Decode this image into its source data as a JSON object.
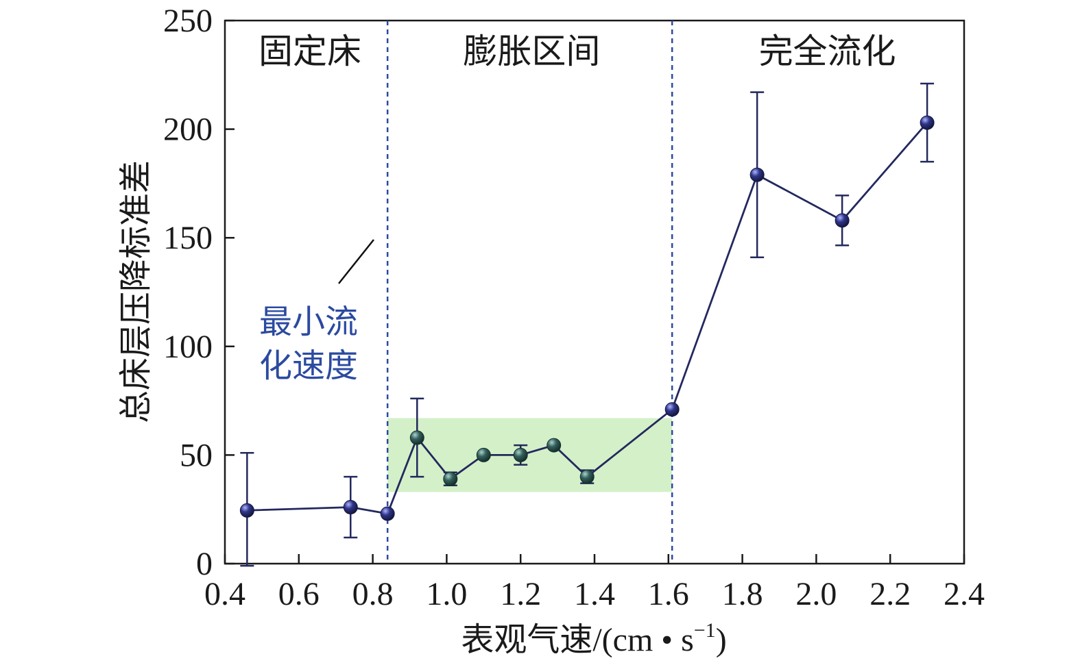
{
  "chart_data": {
    "type": "line",
    "xlabel": "表观气速/(cm • s",
    "xlabel_sup": "−1",
    "xlabel_close": ")",
    "ylabel": "总床层压降标准差",
    "xlim": [
      0.4,
      2.4
    ],
    "ylim": [
      0,
      250
    ],
    "x_ticks": [
      "0.4",
      "0.6",
      "0.8",
      "1.0",
      "1.2",
      "1.4",
      "1.6",
      "1.8",
      "2.0",
      "2.2",
      "2.4"
    ],
    "y_ticks": [
      "0",
      "50",
      "100",
      "150",
      "200",
      "250"
    ],
    "grid": false,
    "series": [
      {
        "points": [
          {
            "x": 0.46,
            "y": 24.5,
            "err_low": 25.5,
            "err_high": 26.5
          },
          {
            "x": 0.74,
            "y": 26,
            "err_low": 14,
            "err_high": 14
          },
          {
            "x": 0.84,
            "y": 23,
            "err_low": 0,
            "err_high": 0
          },
          {
            "x": 0.92,
            "y": 58,
            "err_low": 18,
            "err_high": 18
          },
          {
            "x": 1.01,
            "y": 39,
            "err_low": 3,
            "err_high": 3
          },
          {
            "x": 1.1,
            "y": 50,
            "err_low": 0,
            "err_high": 0
          },
          {
            "x": 1.2,
            "y": 50,
            "err_low": 4.5,
            "err_high": 4.5
          },
          {
            "x": 1.29,
            "y": 54.5,
            "err_low": 0,
            "err_high": 0
          },
          {
            "x": 1.38,
            "y": 40,
            "err_low": 3,
            "err_high": 3
          },
          {
            "x": 1.61,
            "y": 71,
            "err_low": 0,
            "err_high": 0
          },
          {
            "x": 1.84,
            "y": 179,
            "err_low": 38,
            "err_high": 38
          },
          {
            "x": 2.07,
            "y": 158,
            "err_low": 11.5,
            "err_high": 11.5
          },
          {
            "x": 2.3,
            "y": 203,
            "err_low": 18,
            "err_high": 18
          }
        ]
      }
    ],
    "shaded_region": {
      "x": [
        0.84,
        1.61
      ],
      "y": [
        33,
        67
      ],
      "color": "#d4f0c8"
    },
    "vlines": [
      {
        "x": 0.84,
        "style": "dashed"
      },
      {
        "x": 1.61,
        "style": "dashed"
      }
    ],
    "region_labels": [
      {
        "text": "固定床",
        "x": 0.63
      },
      {
        "text": "膨胀区间",
        "x": 1.23
      },
      {
        "text": "完全流化",
        "x": 2.03
      }
    ],
    "annotation": {
      "lines": [
        "最小流",
        "化速度"
      ]
    },
    "colors": {
      "line": "#23285e",
      "marker": "#2a2f77",
      "marker_expanded": "#2f5552",
      "vline": "#2b4aa0",
      "annotation_text": "#2b4aa0",
      "shade": "#d4f0c8",
      "axis": "#1a1a1a"
    }
  }
}
